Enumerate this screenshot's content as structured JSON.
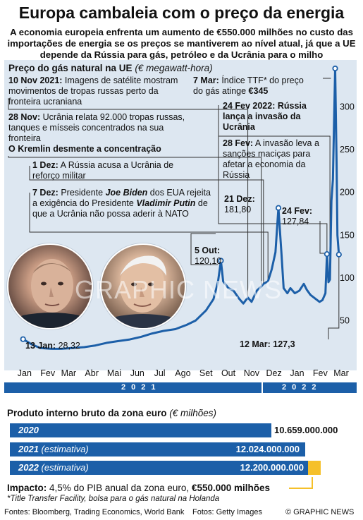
{
  "header": {
    "title": "Europa cambaleia com o preço da energia",
    "subtitle": "A economia europeia enfrenta um aumento de €550.000 milhões no custo das importações de energia se os preços se mantiverem ao nível atual, já que a UE depende da Rússia para gás, petróleo e da Ucrânia para o milho"
  },
  "watermark": "GRAPHIC NEWS",
  "chart_data": [
    {
      "type": "line",
      "title": "Preço do gás natural na UE",
      "unit": "(€ megawatt-hora)",
      "x_axis": {
        "months": [
          "Jan",
          "Fev",
          "Mar",
          "Abr",
          "Mai",
          "Jun",
          "Jul",
          "Ago",
          "Set",
          "Out",
          "Nov",
          "Dez",
          "Jan",
          "Fev",
          "Mar"
        ],
        "years": [
          "2021",
          "2022"
        ]
      },
      "y_axis": {
        "ticks": [
          50,
          100,
          150,
          200,
          250,
          300
        ],
        "ylim": [
          0,
          345
        ]
      },
      "series": [
        {
          "color": "#1c5fa8",
          "points": [
            [
              "2021-01-13",
              28.32
            ],
            [
              "2021-01-25",
              22
            ],
            [
              "2021-02-05",
              18
            ],
            [
              "2021-02-20",
              17
            ],
            [
              "2021-03-05",
              17
            ],
            [
              "2021-03-20",
              18
            ],
            [
              "2021-04-05",
              19
            ],
            [
              "2021-04-20",
              21
            ],
            [
              "2021-05-05",
              24
            ],
            [
              "2021-05-20",
              26
            ],
            [
              "2021-06-05",
              28
            ],
            [
              "2021-06-20",
              31
            ],
            [
              "2021-07-05",
              35
            ],
            [
              "2021-07-20",
              38
            ],
            [
              "2021-08-05",
              40
            ],
            [
              "2021-08-20",
              45
            ],
            [
              "2021-09-01",
              50
            ],
            [
              "2021-09-15",
              62
            ],
            [
              "2021-09-25",
              75
            ],
            [
              "2021-10-01",
              95
            ],
            [
              "2021-10-05",
              120.1
            ],
            [
              "2021-10-08",
              96
            ],
            [
              "2021-10-15",
              88
            ],
            [
              "2021-10-22",
              85
            ],
            [
              "2021-10-29",
              76
            ],
            [
              "2021-11-04",
              70
            ],
            [
              "2021-11-10",
              77
            ],
            [
              "2021-11-15",
              72
            ],
            [
              "2021-11-22",
              85
            ],
            [
              "2021-11-28",
              90
            ],
            [
              "2021-12-01",
              93
            ],
            [
              "2021-12-07",
              96
            ],
            [
              "2021-12-12",
              110
            ],
            [
              "2021-12-17",
              130
            ],
            [
              "2021-12-21",
              181.8
            ],
            [
              "2021-12-25",
              130
            ],
            [
              "2021-12-28",
              88
            ],
            [
              "2022-01-02",
              82
            ],
            [
              "2022-01-06",
              88
            ],
            [
              "2022-01-12",
              82
            ],
            [
              "2022-01-18",
              85
            ],
            [
              "2022-01-24",
              93
            ],
            [
              "2022-01-28",
              86
            ],
            [
              "2022-02-02",
              80
            ],
            [
              "2022-02-08",
              76
            ],
            [
              "2022-02-14",
              72
            ],
            [
              "2022-02-18",
              74
            ],
            [
              "2022-02-22",
              82
            ],
            [
              "2022-02-24",
              127.84
            ],
            [
              "2022-02-26",
              95
            ],
            [
              "2022-02-28",
              98
            ],
            [
              "2022-03-02",
              190
            ],
            [
              "2022-03-04",
              215
            ],
            [
              "2022-03-07",
              345
            ],
            [
              "2022-03-09",
              230
            ],
            [
              "2022-03-10",
              150
            ],
            [
              "2022-03-12",
              127.3
            ]
          ]
        }
      ],
      "data_labels": [
        {
          "label": "13 Jan:",
          "value": "28,32"
        },
        {
          "label": "5 Out:",
          "value": "120,10"
        },
        {
          "label": "21 Dez:",
          "value": "181,80"
        },
        {
          "label": "24 Fev:",
          "value": "127,84"
        },
        {
          "label": "12 Mar:",
          "value": "127,3"
        }
      ],
      "annotations": [
        {
          "date": "10 Nov 2021:",
          "text": "Imagens de satélite mostram movimentos de tropas russas perto da fronteira ucraniana"
        },
        {
          "date": "28 Nov:",
          "text": "Ucrânia relata 92.000 tropas russas, tanques e mísseis concentrados na sua fronteira",
          "bold_line": "O Kremlin desmente a concentração"
        },
        {
          "date": "1 Dez:",
          "text": "A Rússia acusa a Ucrânia de reforço militar"
        },
        {
          "date": "7 Dez:",
          "pre": "Presidente",
          "name1": "Joe Biden",
          "mid": "dos EUA rejeita a exigência do Presidente",
          "name2": "Vladimir Putin",
          "post": "de que a Ucrânia não possa aderir à NATO"
        },
        {
          "date": "7 Mar:",
          "text": "Índice TTF* do preço do gás atinge",
          "value": "€345"
        },
        {
          "date": "24 Fev 2022:",
          "text": "Rússia lança a invasão da Ucrânia"
        },
        {
          "date": "28 Fev:",
          "text": "A invasão leva a sanções maciças para afetar a economia da Rússia"
        }
      ]
    },
    {
      "type": "bar",
      "title": "Produto interno bruto da zona euro",
      "unit": "(€ milhões)",
      "categories": [
        "2020",
        "2021",
        "2022"
      ],
      "qualifiers": [
        "",
        "(estimativa)",
        "(estimativa)"
      ],
      "values": [
        10659000,
        12024000,
        12200000
      ],
      "value_labels": [
        "10.659.000.000",
        "12.024.000.000",
        "12.200.000.000"
      ],
      "highlight_color": "#f5c02a"
    }
  ],
  "footer": {
    "impact_label": "Impacto:",
    "impact_text": "4,5% do PIB anual da zona euro,",
    "impact_value": "€550.000 milhões",
    "footnote": "*Title Transfer Facility, bolsa para o gás natural na Holanda",
    "sources": "Fontes: Bloomberg, Trading Economics, World Bank",
    "photos": "Fotos: Getty Images",
    "copyright": "© GRAPHIC NEWS"
  },
  "colors": {
    "line": "#1c5fa8",
    "panel": "#dde7f1",
    "month_bar": "#1c5fa8",
    "highlight": "#f5c02a"
  }
}
